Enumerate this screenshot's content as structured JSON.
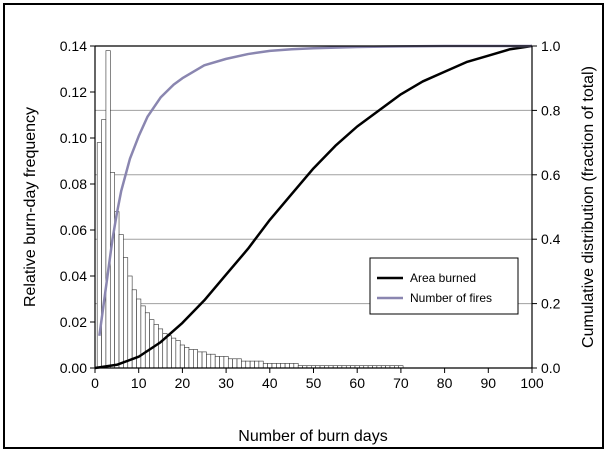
{
  "chart_data": {
    "type": "bar+line",
    "title": "",
    "xlabel": "Number of burn days",
    "ylabel_left": "Relative burn-day frequency",
    "ylabel_right": "Cumulative distribution  (fraction of total)",
    "xlim": [
      0,
      100
    ],
    "ylim_left": [
      0,
      0.14
    ],
    "ylim_right": [
      0,
      1.0
    ],
    "x_ticks": [
      "0",
      "10",
      "20",
      "30",
      "40",
      "50",
      "60",
      "70",
      "80",
      "90",
      "100"
    ],
    "y_left_ticks": [
      "0.00",
      "0.02",
      "0.04",
      "0.06",
      "0.08",
      "0.10",
      "0.12",
      "0.14"
    ],
    "y_right_ticks": [
      "0.0",
      "0.2",
      "0.4",
      "0.6",
      "0.8",
      "1.0"
    ],
    "grid": "horizontal at right-axis ticks",
    "legend_position": "center-right",
    "histogram": {
      "x": [
        1,
        2,
        3,
        4,
        5,
        6,
        7,
        8,
        9,
        10,
        11,
        12,
        13,
        14,
        15,
        16,
        17,
        18,
        19,
        20,
        21,
        22,
        23,
        24,
        25,
        26,
        27,
        28,
        29,
        30,
        31,
        32,
        33,
        34,
        35,
        36,
        37,
        38,
        39,
        40,
        41,
        42,
        43,
        44,
        45,
        46,
        47,
        48,
        49,
        50,
        51,
        52,
        53,
        54,
        55,
        56,
        57,
        58,
        59,
        60,
        61,
        62,
        63,
        64,
        65,
        66,
        67,
        68,
        69,
        70
      ],
      "values": [
        0.098,
        0.108,
        0.138,
        0.085,
        0.068,
        0.058,
        0.048,
        0.04,
        0.034,
        0.03,
        0.027,
        0.024,
        0.021,
        0.019,
        0.017,
        0.015,
        0.014,
        0.013,
        0.012,
        0.01,
        0.009,
        0.008,
        0.008,
        0.007,
        0.007,
        0.006,
        0.006,
        0.005,
        0.005,
        0.005,
        0.004,
        0.004,
        0.004,
        0.003,
        0.003,
        0.003,
        0.003,
        0.003,
        0.002,
        0.002,
        0.002,
        0.002,
        0.002,
        0.002,
        0.002,
        0.002,
        0.001,
        0.001,
        0.001,
        0.001,
        0.001,
        0.001,
        0.001,
        0.001,
        0.001,
        0.001,
        0.001,
        0.001,
        0.001,
        0.001,
        0.001,
        0.001,
        0.001,
        0.001,
        0.001,
        0.001,
        0.001,
        0.001,
        0.001,
        0.001
      ]
    },
    "series": [
      {
        "name": "Area burned",
        "color": "#000000",
        "x": [
          0,
          5,
          10,
          15,
          20,
          25,
          30,
          35,
          40,
          45,
          50,
          55,
          60,
          65,
          70,
          75,
          80,
          85,
          90,
          95,
          100
        ],
        "y": [
          0.0,
          0.01,
          0.035,
          0.08,
          0.14,
          0.21,
          0.29,
          0.37,
          0.46,
          0.54,
          0.62,
          0.69,
          0.75,
          0.8,
          0.85,
          0.89,
          0.92,
          0.95,
          0.97,
          0.99,
          1.0
        ]
      },
      {
        "name": "Number of fires",
        "color": "#8a86b0",
        "x": [
          1,
          2,
          3,
          4,
          5,
          6,
          8,
          10,
          12,
          15,
          18,
          20,
          25,
          30,
          35,
          40,
          45,
          50,
          60,
          70,
          80,
          90,
          100
        ],
        "y": [
          0.1,
          0.2,
          0.3,
          0.4,
          0.48,
          0.55,
          0.65,
          0.72,
          0.78,
          0.84,
          0.88,
          0.9,
          0.94,
          0.96,
          0.975,
          0.985,
          0.99,
          0.993,
          0.997,
          0.999,
          1.0,
          1.0,
          1.0
        ]
      }
    ]
  }
}
